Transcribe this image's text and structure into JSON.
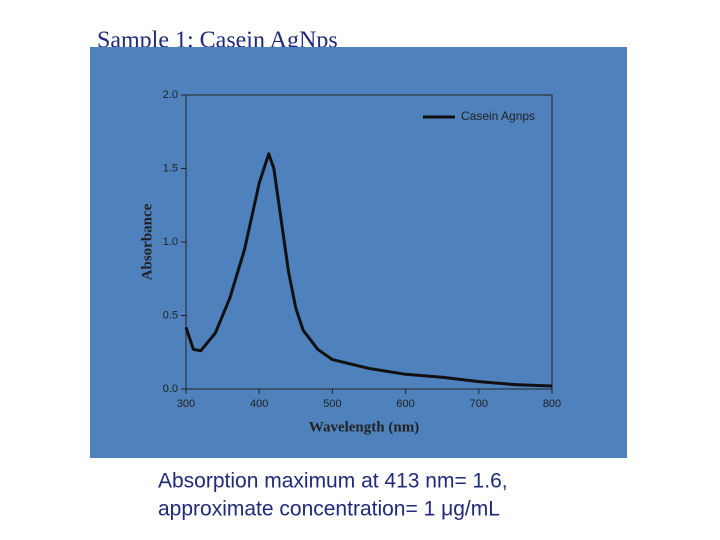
{
  "slide": {
    "title": "Sample 1: Casein AgNps",
    "caption": [
      "Absorption maximum at 413 nm= 1.6,",
      "approximate concentration=  1 μg/mL"
    ]
  },
  "chart_data": {
    "type": "line",
    "x_label": "Wavelength (nm)",
    "y_label": "Absorbance",
    "x": [
      300,
      310,
      320,
      340,
      360,
      380,
      400,
      413,
      420,
      430,
      440,
      450,
      460,
      480,
      500,
      550,
      600,
      650,
      700,
      750,
      800
    ],
    "series": [
      {
        "name": "Casein Agnps",
        "color": "#111111",
        "values": [
          0.42,
          0.27,
          0.26,
          0.38,
          0.62,
          0.95,
          1.4,
          1.6,
          1.5,
          1.15,
          0.8,
          0.55,
          0.4,
          0.27,
          0.2,
          0.14,
          0.1,
          0.08,
          0.05,
          0.03,
          0.02
        ]
      }
    ],
    "xlim": [
      300,
      800
    ],
    "xticks": [
      300,
      400,
      500,
      600,
      700,
      800
    ],
    "ylim": [
      0,
      2
    ],
    "yticks": [
      {
        "value": 0,
        "label": "0.0"
      },
      {
        "value": 0.5,
        "label": "0.5"
      },
      {
        "value": 1,
        "label": "1.0"
      },
      {
        "value": 1.5,
        "label": "1.5"
      },
      {
        "value": 2,
        "label": "2.0"
      }
    ],
    "legend": "top-right"
  }
}
